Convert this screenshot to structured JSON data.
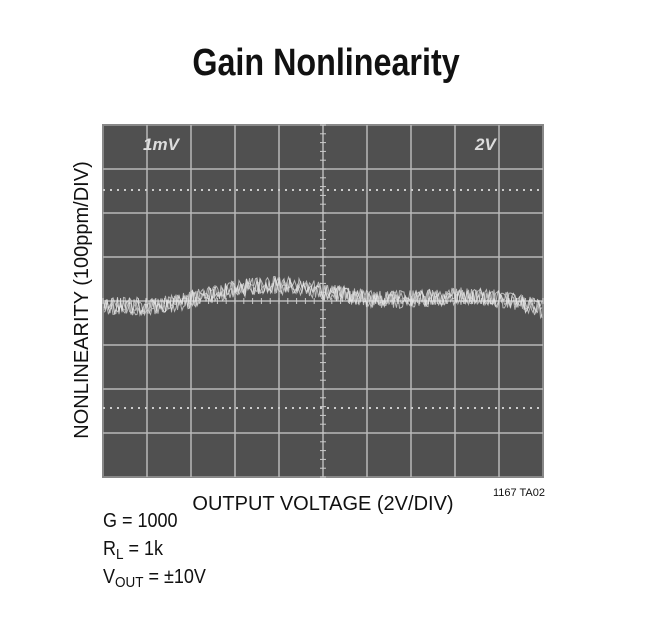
{
  "header": {
    "title": "Gain Nonlinearity"
  },
  "scope": {
    "y_axis_label": "NONLINEARITY (100ppm/DIV)",
    "x_axis_label": "OUTPUT VOLTAGE (2V/DIV)",
    "channel_label_left": "1mV",
    "channel_label_right": "2V",
    "figure_id": "1167 TA02"
  },
  "conditions": [
    {
      "main": "G = 1000"
    },
    {
      "main": "R",
      "sub": "L",
      "rest": " = 1k"
    },
    {
      "main": "V",
      "sub": "OUT",
      "rest": " = ±10V"
    }
  ]
}
